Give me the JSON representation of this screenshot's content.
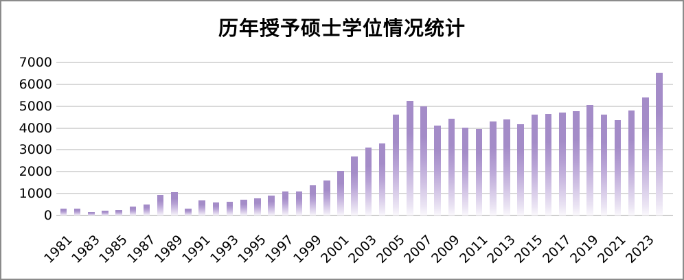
{
  "window": {
    "background": "#ffffff",
    "border_color": "#8b8b8b"
  },
  "chart_data": {
    "type": "bar",
    "title": "历年授予硕士学位情况统计",
    "xlabel": "",
    "ylabel": "",
    "categories": [
      "1981",
      "1982",
      "1983",
      "1984",
      "1985",
      "1986",
      "1987",
      "1988",
      "1989",
      "1990",
      "1991",
      "1992",
      "1993",
      "1994",
      "1995",
      "1996",
      "1997",
      "1998",
      "1999",
      "2000",
      "2001",
      "2002",
      "2003",
      "2004",
      "2005",
      "2006",
      "2007",
      "2008",
      "2009",
      "2010",
      "2011",
      "2012",
      "2013",
      "2014",
      "2015",
      "2016",
      "2017",
      "2018",
      "2019",
      "2020",
      "2021",
      "2022",
      "2023",
      "2024"
    ],
    "values": [
      320,
      320,
      150,
      230,
      260,
      400,
      490,
      930,
      1080,
      300,
      690,
      600,
      620,
      720,
      770,
      900,
      1110,
      1110,
      1390,
      1600,
      2050,
      2700,
      3100,
      3300,
      4600,
      5250,
      5000,
      4100,
      4430,
      4030,
      3950,
      4290,
      4400,
      4160,
      4600,
      4640,
      4720,
      4770,
      5060,
      4620,
      4350,
      4800,
      5400,
      6540
    ],
    "ylim": [
      0,
      7000
    ],
    "yticks": [
      0,
      1000,
      2000,
      3000,
      4000,
      5000,
      6000,
      7000
    ],
    "xtick_labels": [
      "1981",
      "1983",
      "1985",
      "1987",
      "1989",
      "1991",
      "1993",
      "1995",
      "1997",
      "1999",
      "2001",
      "2003",
      "2005",
      "2007",
      "2009",
      "2011",
      "2013",
      "2015",
      "2017",
      "2019",
      "2021",
      "2023"
    ],
    "xtick_every": 2,
    "grid": "horizontal",
    "legend": "none",
    "bar_color_top": "#a48cc8",
    "bar_color_bottom": "#faf8fc",
    "gridline_color": "#d9d9d9",
    "title_color": "#000000",
    "tick_label_color": "#000000"
  }
}
